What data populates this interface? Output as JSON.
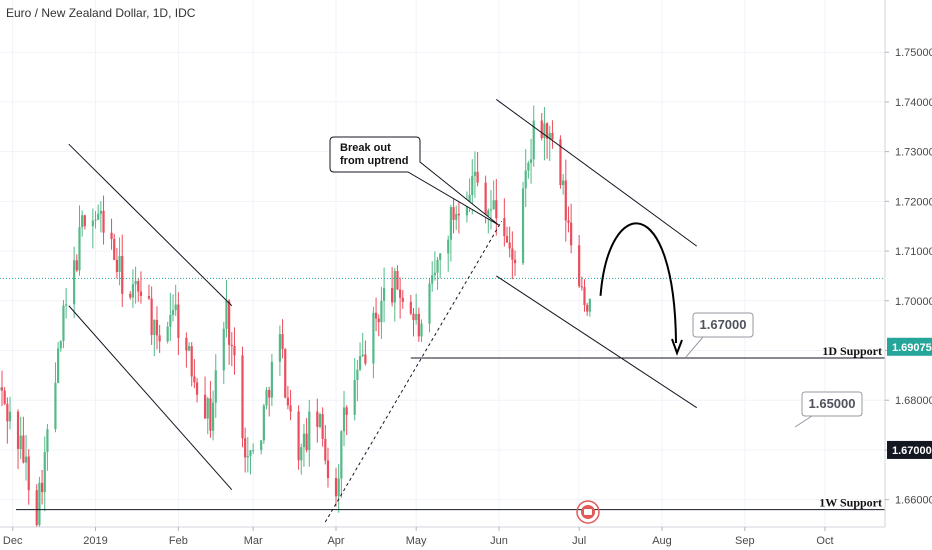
{
  "chart_data": {
    "type": "candlestick",
    "title": "Euro / New Zealand Dollar, 1D, IDC",
    "xlabel": "",
    "ylabel": "",
    "ylim": [
      1.6545,
      1.7605
    ],
    "y_ticks": [
      "1.75000",
      "1.74000",
      "1.73000",
      "1.72000",
      "1.71000",
      "1.70000",
      "1.69000",
      "1.68000",
      "1.67000",
      "1.66000"
    ],
    "x_ticks": [
      "Dec",
      "2019",
      "Feb",
      "Mar",
      "Apr",
      "May",
      "Jun",
      "Jul",
      "Aug",
      "Sep",
      "Oct"
    ],
    "grid": true,
    "colors": {
      "up": "#53b987",
      "down": "#eb4d5c",
      "price_line": "#26a69a",
      "price_tag": "#26a69a",
      "level_tag": "#131722"
    },
    "price_line": 1.7045,
    "price_tag_label": "1.69075",
    "price_tag_value": 1.69075,
    "level_tag_label": "1.67000",
    "level_tag_value": 1.67,
    "path": [
      [
        "2018-11-26",
        1.682
      ],
      [
        "2018-12-05",
        1.669
      ],
      [
        "2018-12-10",
        1.658
      ],
      [
        "2018-12-14",
        1.672
      ],
      [
        "2018-12-20",
        1.696
      ],
      [
        "2018-12-24",
        1.706
      ],
      [
        "2018-12-28",
        1.718
      ],
      [
        "2019-01-04",
        1.716
      ],
      [
        "2019-01-09",
        1.707
      ],
      [
        "2019-01-14",
        1.7
      ],
      [
        "2019-01-19",
        1.705
      ],
      [
        "2019-01-24",
        1.69
      ],
      [
        "2019-01-30",
        1.7
      ],
      [
        "2019-02-04",
        1.689
      ],
      [
        "2019-02-09",
        1.683
      ],
      [
        "2019-02-13",
        1.676
      ],
      [
        "2019-02-16",
        1.689
      ],
      [
        "2019-02-19",
        1.698
      ],
      [
        "2019-02-23",
        1.683
      ],
      [
        "2019-02-27",
        1.668
      ],
      [
        "2019-03-03",
        1.671
      ],
      [
        "2019-03-07",
        1.684
      ],
      [
        "2019-03-11",
        1.692
      ],
      [
        "2019-03-15",
        1.676
      ],
      [
        "2019-03-19",
        1.669
      ],
      [
        "2019-03-24",
        1.678
      ],
      [
        "2019-03-28",
        1.67
      ],
      [
        "2019-03-31",
        1.658
      ],
      [
        "2019-04-04",
        1.676
      ],
      [
        "2019-04-09",
        1.685
      ],
      [
        "2019-04-14",
        1.693
      ],
      [
        "2019-04-19",
        1.701
      ],
      [
        "2019-04-24",
        1.703
      ],
      [
        "2019-04-29",
        1.698
      ],
      [
        "2019-05-03",
        1.693
      ],
      [
        "2019-05-08",
        1.705
      ],
      [
        "2019-05-13",
        1.715
      ],
      [
        "2019-05-18",
        1.721
      ],
      [
        "2019-05-23",
        1.725
      ],
      [
        "2019-05-28",
        1.719
      ],
      [
        "2019-06-02",
        1.717
      ],
      [
        "2019-06-06",
        1.707
      ],
      [
        "2019-06-10",
        1.72
      ],
      [
        "2019-06-14",
        1.733
      ],
      [
        "2019-06-18",
        1.735
      ],
      [
        "2019-06-21",
        1.73
      ],
      [
        "2019-06-25",
        1.721
      ],
      [
        "2019-06-28",
        1.711
      ],
      [
        "2019-07-02",
        1.703
      ],
      [
        "2019-07-05",
        1.698
      ]
    ],
    "annotations": {
      "callout": "Break out\nfrom uptrend",
      "level_1": "1.67000",
      "level_2": "1.65000",
      "support_1d_label": "1D Support",
      "support_1d_value": 1.6885,
      "support_1w_label": "1W Support",
      "support_1w_value": 1.658
    },
    "trendlines": [
      {
        "name": "channel-1-upper",
        "from": [
          "2018-12-22",
          1.7315
        ],
        "to": [
          "2019-02-21",
          1.699
        ]
      },
      {
        "name": "channel-1-lower",
        "from": [
          "2018-12-22",
          1.699
        ],
        "to": [
          "2019-02-21",
          1.662
        ]
      },
      {
        "name": "uptrend",
        "from": [
          "2019-03-28",
          1.6555
        ],
        "to": [
          "2019-06-02",
          1.716
        ]
      },
      {
        "name": "channel-3-upper",
        "from": [
          "2019-05-31",
          1.7405
        ],
        "to": [
          "2019-08-14",
          1.711
        ]
      },
      {
        "name": "channel-3-lower",
        "from": [
          "2019-05-31",
          1.705
        ],
        "to": [
          "2019-08-14",
          1.6785
        ]
      }
    ],
    "projection": {
      "from": [
        "2019-07-09",
        1.701
      ],
      "peak": [
        "2019-07-24",
        1.717
      ],
      "to": [
        "2019-08-07",
        1.6895
      ]
    }
  }
}
